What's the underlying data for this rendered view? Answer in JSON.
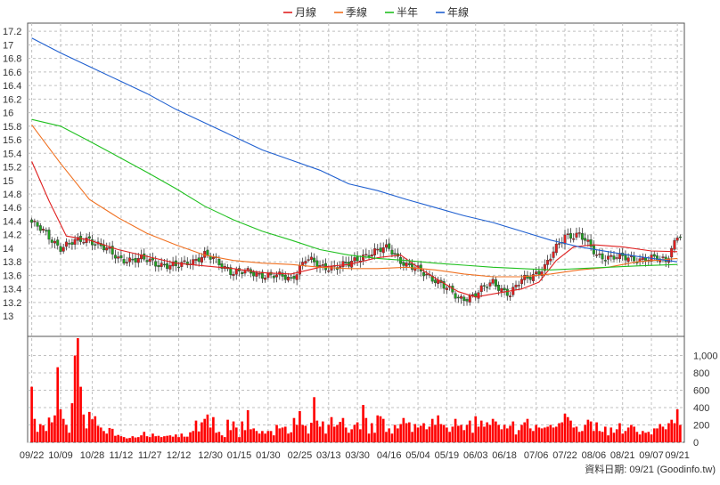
{
  "legend": [
    {
      "label": "月線",
      "color": "#e02020"
    },
    {
      "label": "季線",
      "color": "#f07020"
    },
    {
      "label": "半年",
      "color": "#20c020"
    },
    {
      "label": "年線",
      "color": "#2060d0"
    }
  ],
  "credit": "資料日期: 09/21 (Goodinfo.tw)",
  "chart_data": [
    {
      "type": "candlestick",
      "title": "",
      "ylim": [
        13.0,
        17.2
      ],
      "y_ticks": [
        13,
        13.2,
        13.4,
        13.6,
        13.8,
        14,
        14.2,
        14.4,
        14.6,
        14.8,
        15,
        15.2,
        15.4,
        15.6,
        15.8,
        16,
        16.2,
        16.4,
        16.6,
        16.8,
        17,
        17.2
      ],
      "grid": true,
      "legend_position": "top-center",
      "colors": {
        "up": "#e02020",
        "down": "#20a020"
      },
      "x_tick_labels": [
        "09/22",
        "10/09",
        "10/28",
        "11/12",
        "11/27",
        "12/12",
        "12/30",
        "01/15",
        "01/30",
        "02/25",
        "03/13",
        "03/30",
        "04/16",
        "05/04",
        "05/19",
        "06/03",
        "06/18",
        "07/06",
        "07/22",
        "08/06",
        "08/21",
        "09/07",
        "09/21"
      ],
      "x_tick_index": [
        0,
        10,
        21,
        31,
        41,
        51,
        62,
        72,
        82,
        93,
        103,
        113,
        124,
        134,
        144,
        154,
        164,
        175,
        185,
        195,
        205,
        215,
        224
      ],
      "close_path": [
        [
          0,
          14.38
        ],
        [
          10,
          14.02
        ],
        [
          20,
          14.15
        ],
        [
          30,
          13.85
        ],
        [
          40,
          13.82
        ],
        [
          50,
          13.72
        ],
        [
          60,
          13.9
        ],
        [
          70,
          13.65
        ],
        [
          80,
          13.62
        ],
        [
          90,
          13.55
        ],
        [
          95,
          13.85
        ],
        [
          100,
          13.72
        ],
        [
          110,
          13.75
        ],
        [
          115,
          13.9
        ],
        [
          124,
          14.0
        ],
        [
          130,
          13.75
        ],
        [
          140,
          13.55
        ],
        [
          148,
          13.25
        ],
        [
          154,
          13.32
        ],
        [
          160,
          13.5
        ],
        [
          166,
          13.32
        ],
        [
          170,
          13.52
        ],
        [
          178,
          13.72
        ],
        [
          185,
          14.2
        ],
        [
          190,
          14.2
        ],
        [
          196,
          13.9
        ],
        [
          205,
          13.85
        ],
        [
          212,
          13.85
        ],
        [
          220,
          13.82
        ],
        [
          224,
          14.2
        ]
      ],
      "moving_averages": [
        {
          "name": "月線",
          "color": "#e02020",
          "points": [
            [
              0,
              15.28
            ],
            [
              6,
              14.7
            ],
            [
              12,
              14.18
            ],
            [
              20,
              14.12
            ],
            [
              30,
              13.98
            ],
            [
              40,
              13.88
            ],
            [
              50,
              13.78
            ],
            [
              60,
              13.74
            ],
            [
              70,
              13.7
            ],
            [
              80,
              13.64
            ],
            [
              90,
              13.62
            ],
            [
              100,
              13.72
            ],
            [
              110,
              13.76
            ],
            [
              120,
              13.86
            ],
            [
              128,
              13.9
            ],
            [
              134,
              13.72
            ],
            [
              140,
              13.56
            ],
            [
              148,
              13.36
            ],
            [
              154,
              13.28
            ],
            [
              162,
              13.34
            ],
            [
              170,
              13.4
            ],
            [
              176,
              13.5
            ],
            [
              182,
              13.82
            ],
            [
              188,
              14.02
            ],
            [
              195,
              14.05
            ],
            [
              205,
              14.02
            ],
            [
              215,
              13.96
            ],
            [
              224,
              13.95
            ]
          ]
        },
        {
          "name": "季線",
          "color": "#f07020",
          "points": [
            [
              0,
              15.82
            ],
            [
              10,
              15.25
            ],
            [
              20,
              14.72
            ],
            [
              30,
              14.45
            ],
            [
              40,
              14.22
            ],
            [
              50,
              14.05
            ],
            [
              60,
              13.9
            ],
            [
              70,
              13.82
            ],
            [
              80,
              13.78
            ],
            [
              90,
              13.76
            ],
            [
              100,
              13.72
            ],
            [
              110,
              13.7
            ],
            [
              120,
              13.7
            ],
            [
              130,
              13.72
            ],
            [
              140,
              13.68
            ],
            [
              150,
              13.62
            ],
            [
              160,
              13.58
            ],
            [
              170,
              13.58
            ],
            [
              180,
              13.62
            ],
            [
              190,
              13.68
            ],
            [
              200,
              13.72
            ],
            [
              210,
              13.8
            ],
            [
              224,
              13.85
            ]
          ]
        },
        {
          "name": "半年",
          "color": "#20c020",
          "points": [
            [
              0,
              15.9
            ],
            [
              10,
              15.8
            ],
            [
              20,
              15.58
            ],
            [
              30,
              15.35
            ],
            [
              40,
              15.12
            ],
            [
              50,
              14.88
            ],
            [
              60,
              14.62
            ],
            [
              70,
              14.42
            ],
            [
              80,
              14.25
            ],
            [
              90,
              14.12
            ],
            [
              100,
              13.98
            ],
            [
              110,
              13.9
            ],
            [
              120,
              13.85
            ],
            [
              130,
              13.82
            ],
            [
              140,
              13.78
            ],
            [
              150,
              13.75
            ],
            [
              160,
              13.72
            ],
            [
              170,
              13.7
            ],
            [
              180,
              13.68
            ],
            [
              190,
              13.7
            ],
            [
              200,
              13.72
            ],
            [
              210,
              13.74
            ],
            [
              224,
              13.76
            ]
          ]
        },
        {
          "name": "年線",
          "color": "#2060d0",
          "points": [
            [
              0,
              17.1
            ],
            [
              10,
              16.88
            ],
            [
              20,
              16.68
            ],
            [
              30,
              16.48
            ],
            [
              40,
              16.28
            ],
            [
              50,
              16.05
            ],
            [
              60,
              15.85
            ],
            [
              70,
              15.65
            ],
            [
              80,
              15.45
            ],
            [
              90,
              15.3
            ],
            [
              100,
              15.15
            ],
            [
              110,
              14.95
            ],
            [
              120,
              14.85
            ],
            [
              130,
              14.72
            ],
            [
              140,
              14.6
            ],
            [
              150,
              14.48
            ],
            [
              160,
              14.38
            ],
            [
              170,
              14.25
            ],
            [
              180,
              14.12
            ],
            [
              190,
              14.02
            ],
            [
              200,
              13.95
            ],
            [
              210,
              13.88
            ],
            [
              224,
              13.8
            ]
          ]
        }
      ]
    },
    {
      "type": "bar",
      "title": "",
      "ylim": [
        0,
        1200
      ],
      "y_ticks": [
        0,
        200,
        400,
        600,
        800,
        1000
      ],
      "y_tick_labels": [
        "0",
        "200",
        "400",
        "600",
        "800",
        "1,000"
      ],
      "color": "#ff0000",
      "values": [
        640,
        270,
        120,
        210,
        195,
        130,
        285,
        230,
        310,
        865,
        380,
        270,
        200,
        110,
        450,
        1000,
        1200,
        640,
        320,
        160,
        350,
        265,
        300,
        190,
        170,
        130,
        100,
        165,
        155,
        75,
        85,
        70,
        60,
        45,
        50,
        70,
        55,
        60,
        80,
        120,
        70,
        60,
        100,
        70,
        75,
        60,
        70,
        75,
        80,
        65,
        90,
        60,
        100,
        65,
        65,
        115,
        130,
        250,
        125,
        230,
        270,
        320,
        170,
        290,
        110,
        120,
        80,
        60,
        260,
        140,
        240,
        170,
        60,
        240,
        140,
        370,
        150,
        160,
        130,
        100,
        130,
        100,
        130,
        130,
        80,
        200,
        160,
        170,
        180,
        100,
        115,
        280,
        200,
        360,
        200,
        190,
        100,
        225,
        520,
        250,
        180,
        240,
        100,
        200,
        290,
        180,
        200,
        235,
        280,
        170,
        110,
        150,
        200,
        230,
        150,
        430,
        280,
        100,
        220,
        110,
        310,
        300,
        270,
        120,
        160,
        100,
        200,
        160,
        210,
        280,
        220,
        230,
        120,
        210,
        170,
        190,
        220,
        150,
        180,
        270,
        200,
        310,
        210,
        200,
        170,
        120,
        180,
        270,
        190,
        200,
        140,
        200,
        250,
        110,
        300,
        180,
        250,
        180,
        230,
        200,
        270,
        240,
        200,
        150,
        200,
        160,
        190,
        240,
        90,
        140,
        200,
        230,
        270,
        160,
        130,
        200,
        170,
        160,
        170,
        180,
        200,
        170,
        180,
        220,
        230,
        330,
        290,
        250,
        170,
        180,
        120,
        130,
        200,
        260,
        240,
        130,
        230,
        130,
        120,
        180,
        80,
        170,
        110,
        150,
        220,
        100,
        130,
        170,
        200,
        180,
        120,
        90,
        130,
        110,
        120,
        90,
        160,
        160,
        210,
        180,
        150,
        220,
        260,
        220,
        380,
        200
      ]
    }
  ]
}
